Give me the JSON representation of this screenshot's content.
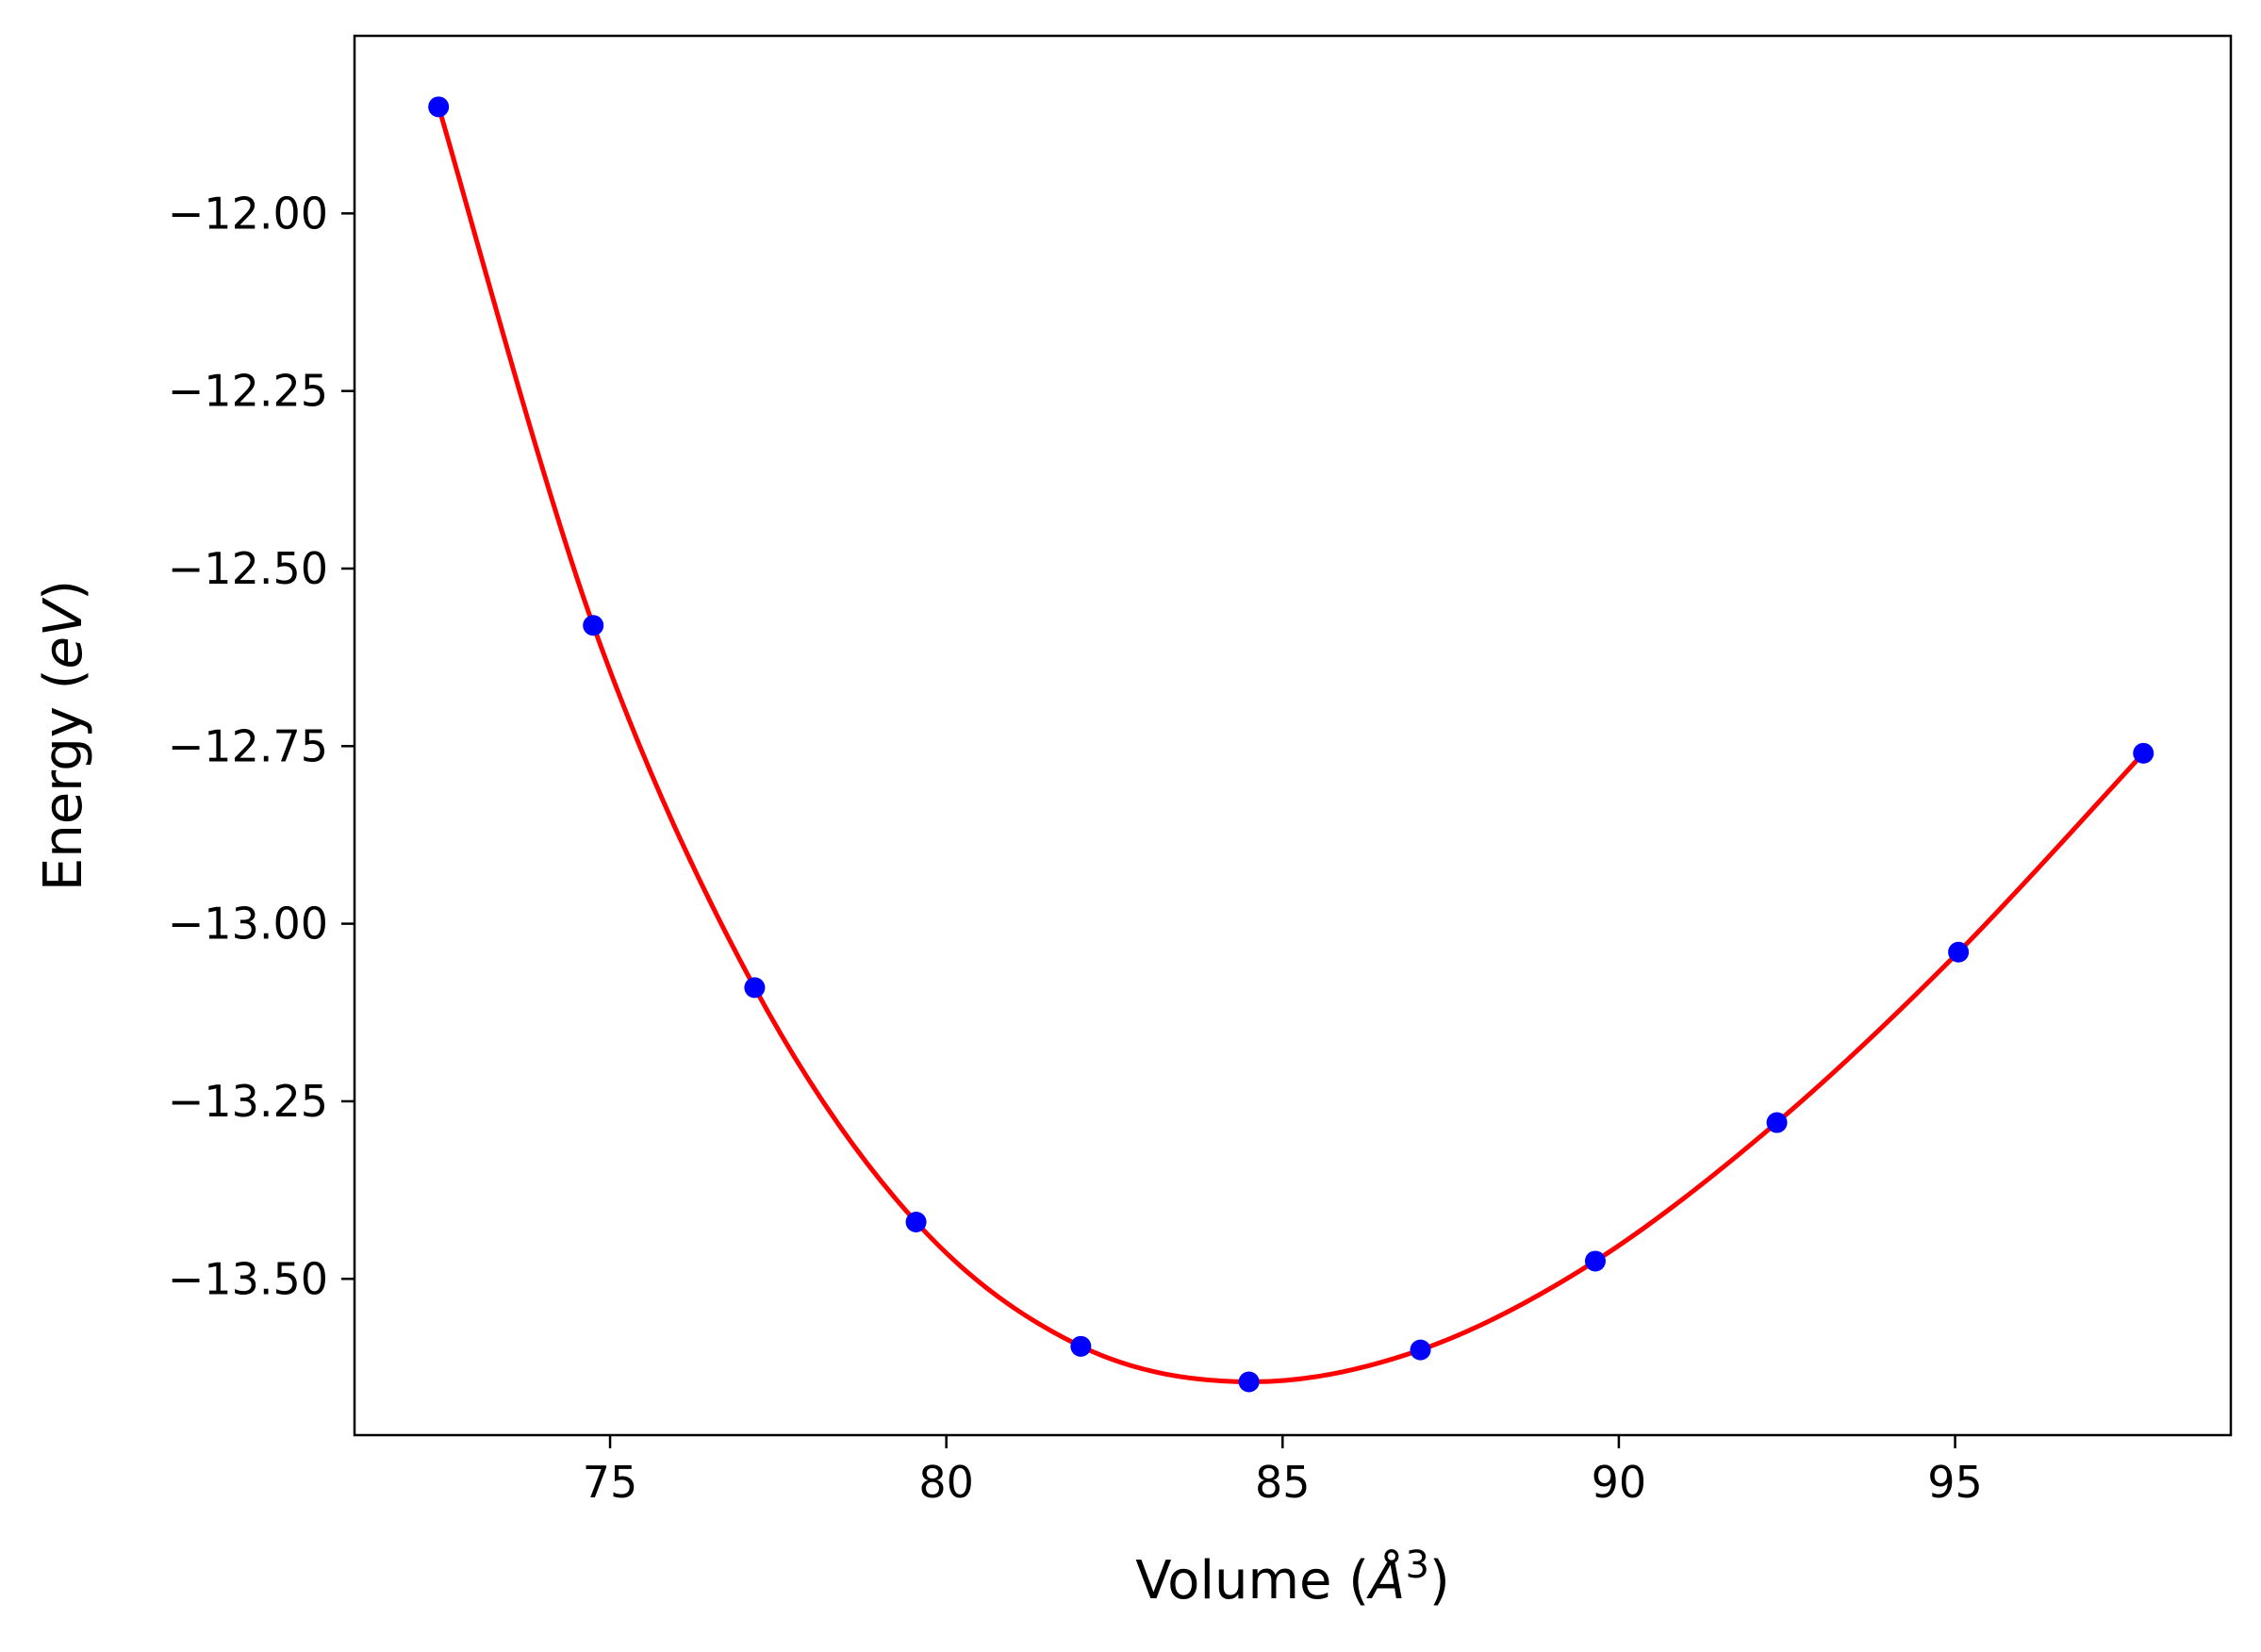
{
  "chart_data": {
    "type": "scatter",
    "title": "",
    "xlabel_prefix": "Volume (",
    "xlabel_unit": "Å",
    "xlabel_exponent": "3",
    "xlabel_suffix": ")",
    "ylabel_prefix": "Energy (",
    "ylabel_unit": "eV",
    "ylabel_suffix": ")",
    "xlim": [
      71.2,
      99.1
    ],
    "ylim": [
      -13.72,
      -11.75
    ],
    "xticks": [
      75,
      80,
      85,
      90,
      95
    ],
    "xtick_labels": [
      "75",
      "80",
      "85",
      "90",
      "95"
    ],
    "yticks": [
      -12.0,
      -12.25,
      -12.5,
      -12.75,
      -13.0,
      -13.25,
      -13.5
    ],
    "ytick_labels": [
      "−12.00",
      "−12.25",
      "−12.50",
      "−12.75",
      "−13.00",
      "−13.25",
      "−13.50"
    ],
    "grid": false,
    "series": [
      {
        "kind": "points",
        "color": "#0000ff",
        "x": [
          72.45,
          74.75,
          77.15,
          79.55,
          82.0,
          84.5,
          87.05,
          89.65,
          92.35,
          95.05,
          97.8
        ],
        "y": [
          -11.85,
          -12.58,
          -13.09,
          -13.42,
          -13.595,
          -13.645,
          -13.6,
          -13.475,
          -13.28,
          -13.04,
          -12.76
        ]
      },
      {
        "kind": "fit-line",
        "color": "#ff0000"
      }
    ]
  }
}
